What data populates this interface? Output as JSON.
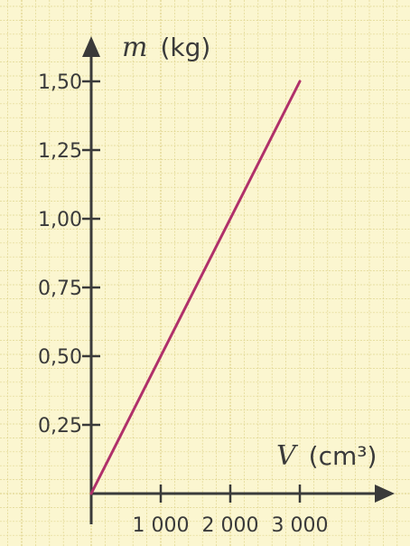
{
  "chart_data": {
    "type": "line",
    "x": [
      0,
      3000
    ],
    "y": [
      0,
      1.5
    ],
    "xlim": [
      0,
      4000
    ],
    "ylim": [
      0,
      1.65
    ],
    "x_ticks": [
      1000,
      2000,
      3000
    ],
    "x_tick_labels": [
      "1 000",
      "2 000",
      "3 000"
    ],
    "y_ticks": [
      0.25,
      0.5,
      0.75,
      1.0,
      1.25,
      1.5
    ],
    "y_tick_labels": [
      "0,25",
      "0,50",
      "0,75",
      "1,00",
      "1,25",
      "1,50"
    ],
    "xlabel": {
      "symbol": "V",
      "unit": "(cm³)"
    },
    "ylabel": {
      "symbol": "m",
      "unit": "(kg)"
    },
    "grid": true,
    "colors": {
      "background": "#fbf6d0",
      "grid": "#e0d590",
      "axis": "#3a3a3a",
      "line": "#b0306a"
    }
  }
}
